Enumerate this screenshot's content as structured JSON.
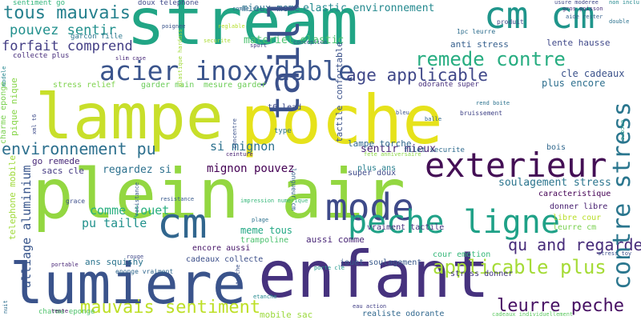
{
  "words": [
    {
      "text": "lampe",
      "color": "#c8df2a"
    },
    {
      "text": "poche",
      "color": "#e6e21b"
    },
    {
      "text": "plein air",
      "color": "#93d741"
    },
    {
      "text": "stream",
      "color": "#21a585"
    },
    {
      "text": "enfant",
      "color": "#46327e"
    },
    {
      "text": "lumiere",
      "color": "#3a538b"
    },
    {
      "text": "taille",
      "color": "#3b518b"
    },
    {
      "text": "cm cm",
      "color": "#1f958b"
    },
    {
      "text": "exterieur",
      "color": "#440f55"
    },
    {
      "text": "mode",
      "color": "#3e4a89"
    },
    {
      "text": "peche ligne",
      "color": "#1fa187"
    },
    {
      "text": "cm",
      "color": "#31668e"
    },
    {
      "text": "contre stress",
      "color": "#2a768e"
    },
    {
      "text": "acier inoxydable",
      "color": "#3a548c"
    },
    {
      "text": "remede contre",
      "color": "#27ad81"
    },
    {
      "text": "applicable plus",
      "color": "#a5db36"
    },
    {
      "text": "mauvais sentiment",
      "color": "#bddf26"
    },
    {
      "text": "leurre peche",
      "color": "#471063"
    },
    {
      "text": "tous mauvais",
      "color": "#26818e"
    },
    {
      "text": "environnement pu",
      "color": "#2d708e"
    },
    {
      "text": "age applicable",
      "color": "#3f4788"
    },
    {
      "text": "qu and regardez",
      "color": "#472c7a"
    },
    {
      "text": "pouvez sentir",
      "color": "#21908d"
    },
    {
      "text": "forfait comprend",
      "color": "#433e85"
    },
    {
      "text": "si mignon",
      "color": "#2c718e"
    },
    {
      "text": "mignon pouvez",
      "color": "#440154"
    },
    {
      "text": "comme jouet",
      "color": "#29af7f"
    },
    {
      "text": "pu taille",
      "color": "#21918c"
    },
    {
      "text": "regardez si",
      "color": "#2d718e"
    },
    {
      "text": "sentir mieux",
      "color": "#482475"
    },
    {
      "text": "soulagement stress",
      "color": "#2b758e"
    },
    {
      "text": "elastic environnement",
      "color": "#23888e"
    },
    {
      "text": "mieux meme",
      "color": "#2c728e"
    },
    {
      "text": "materiel elastic",
      "color": "#4ac16d"
    },
    {
      "text": "alliage aluminium",
      "color": "#39568c"
    },
    {
      "text": "meme tous",
      "color": "#22a884"
    },
    {
      "text": "lampe torche",
      "color": "#31688e"
    },
    {
      "text": "go remede",
      "color": "#482878"
    },
    {
      "text": "plus encore",
      "color": "#2e6f8e"
    },
    {
      "text": "cle cadeaux",
      "color": "#3b528b"
    },
    {
      "text": "sacs cle",
      "color": "#443983"
    },
    {
      "text": "trampoline",
      "color": "#4ac16d"
    },
    {
      "text": "encore aussi",
      "color": "#481769"
    },
    {
      "text": "cadeaux collecte",
      "color": "#3c4f8a"
    },
    {
      "text": "jouet soulagement",
      "color": "#38598c"
    },
    {
      "text": "cour emotion",
      "color": "#35b779"
    },
    {
      "text": "stress donner",
      "color": "#453781"
    },
    {
      "text": "realiste odorante",
      "color": "#31688e"
    },
    {
      "text": "donner libre",
      "color": "#482071"
    },
    {
      "text": "libre cour",
      "color": "#b8de29"
    },
    {
      "text": "leurre cm",
      "color": "#7ad151"
    },
    {
      "text": "caracteristique",
      "color": "#440154"
    },
    {
      "text": "lente hausse",
      "color": "#3f4889"
    },
    {
      "text": "anti stress",
      "color": "#355f8d"
    },
    {
      "text": "stress relief",
      "color": "#7fd34e"
    },
    {
      "text": "garder main",
      "color": "#6ccd5a"
    },
    {
      "text": "mesure garder",
      "color": "#6ece58"
    },
    {
      "text": "t6 lead",
      "color": "#3e4989"
    },
    {
      "text": "aussi comme",
      "color": "#482576"
    },
    {
      "text": "vraiment tactile",
      "color": "#463480"
    },
    {
      "text": "plus ans",
      "color": "#277f8e"
    },
    {
      "text": "ans squishy",
      "color": "#2b748e"
    },
    {
      "text": "mobile sac",
      "color": "#9bd93c"
    },
    {
      "text": "sentiment go",
      "color": "#31b57b"
    },
    {
      "text": "doux telephone",
      "color": "#3f4a8a"
    },
    {
      "text": "garcon fille",
      "color": "#2a778e"
    },
    {
      "text": "collecte plus",
      "color": "#472d7b"
    },
    {
      "text": "telephone mobile",
      "color": "#9fda3a"
    },
    {
      "text": "pique nique",
      "color": "#86d549"
    },
    {
      "text": "charme eponge",
      "color": "#7ad151"
    },
    {
      "text": "super doux",
      "color": "#4ec36b"
    },
    {
      "text": "bois",
      "color": "#3e4a89"
    },
    {
      "text": "type",
      "color": "#31688e"
    },
    {
      "text": "filet securite",
      "color": "#2b758e"
    },
    {
      "text": "odorante super",
      "color": "#2f6b8e"
    },
    {
      "text": "tactile confortable",
      "color": "#472f7d"
    },
    {
      "text": "longueur cm",
      "color": "#3b528b"
    },
    {
      "text": "comme vie",
      "color": "#34618d"
    },
    {
      "text": "poignee",
      "color": "#31688e"
    },
    {
      "text": "reglable",
      "color": "#3a538b"
    },
    {
      "text": "slim case",
      "color": "#b5de2b"
    },
    {
      "text": "xml t6",
      "color": "#482878"
    },
    {
      "text": "conception",
      "color": "#3e4c8a"
    },
    {
      "text": "utilisation",
      "color": "#38598c"
    },
    {
      "text": "produit",
      "color": "#3f4889"
    },
    {
      "text": "1pc leurre",
      "color": "#2e6e8e"
    },
    {
      "text": "eponge vraiment",
      "color": "#31688e"
    },
    {
      "text": "encore",
      "color": "#1f998a"
    },
    {
      "text": "grace",
      "color": "#3d4e8a"
    },
    {
      "text": "cadeaux individuellement",
      "color": "#5ec962"
    },
    {
      "text": "usure moderee",
      "color": "#3f4788"
    },
    {
      "text": "non inclu",
      "color": "#23898e"
    },
    {
      "text": "aide rester",
      "color": "#34618d"
    },
    {
      "text": "gros poisson",
      "color": "#472d7b"
    },
    {
      "text": "double",
      "color": "#2c728e"
    },
    {
      "text": "concentre",
      "color": "#3b528b"
    },
    {
      "text": "fete anniversaire",
      "color": "#8bd646"
    },
    {
      "text": "tente",
      "color": "#481467"
    },
    {
      "text": "balle",
      "color": "#31688e"
    },
    {
      "text": "sport",
      "color": "#443a83"
    },
    {
      "text": "bleu",
      "color": "#3b528b"
    },
    {
      "text": "ceinture",
      "color": "#482173"
    },
    {
      "text": "plage",
      "color": "#2c718e"
    },
    {
      "text": "modele",
      "color": "#24878e"
    },
    {
      "text": "etanche",
      "color": "#3b528b"
    },
    {
      "text": "eau action",
      "color": "#23888e"
    },
    {
      "text": "porte cle",
      "color": "#424086"
    },
    {
      "text": "securite",
      "color": "#1f978b"
    },
    {
      "text": "rouge",
      "color": "#aadc32"
    },
    {
      "text": "stress toy",
      "color": "#3f4788"
    },
    {
      "text": "portable",
      "color": "#3c4f8a"
    },
    {
      "text": "rend boite",
      "color": "#482677"
    },
    {
      "text": "resistance",
      "color": "#2c728e"
    },
    {
      "text": "nuit",
      "color": "#38598c"
    },
    {
      "text": "impression numerique",
      "color": "#2e6e8e"
    },
    {
      "text": "plastique hardass",
      "color": "#35b779"
    },
    {
      "text": "bruissement",
      "color": "#a0da39"
    },
    {
      "text": "doux tre",
      "color": "#414487"
    }
  ]
}
